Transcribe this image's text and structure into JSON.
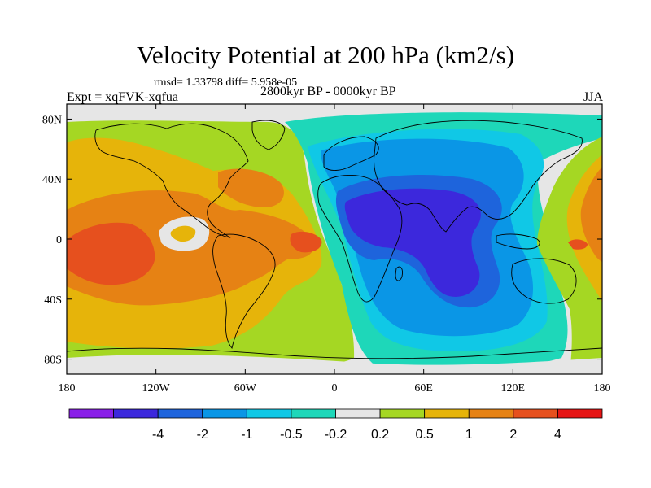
{
  "title": "Velocity Potential at 200 hPa (km2/s)",
  "stats": "rmsd= 1.33798 diff= 5.958e-05",
  "experiment": "Expt = xqFVK-xqfua",
  "period": "2800kyr BP - 0000kyr BP",
  "season": "JJA",
  "lat_ticks": [
    {
      "lat": 80,
      "label": "80N"
    },
    {
      "lat": 40,
      "label": "40N"
    },
    {
      "lat": 0,
      "label": "0"
    },
    {
      "lat": -40,
      "label": "40S"
    },
    {
      "lat": -80,
      "label": "80S"
    }
  ],
  "lon_ticks": [
    {
      "lon": -180,
      "label": "180"
    },
    {
      "lon": -120,
      "label": "120W"
    },
    {
      "lon": -60,
      "label": "60W"
    },
    {
      "lon": 0,
      "label": "0"
    },
    {
      "lon": 60,
      "label": "60E"
    },
    {
      "lon": 120,
      "label": "120E"
    },
    {
      "lon": 180,
      "label": "180"
    }
  ],
  "colorbar": {
    "colors": [
      "#8a1fe8",
      "#3c28dc",
      "#1e64dc",
      "#0a96e6",
      "#10c8e6",
      "#1ed7b9",
      "#e6e6e6",
      "#a5d723",
      "#e6b40a",
      "#e68214",
      "#e6501e",
      "#e61414"
    ],
    "labels": [
      "-4",
      "-2",
      "-1",
      "-0.5",
      "-0.2",
      "0.2",
      "0.5",
      "1",
      "2",
      "4"
    ]
  },
  "colors": {
    "ocean_default": "#e6e6e6",
    "coast": "#000000"
  }
}
